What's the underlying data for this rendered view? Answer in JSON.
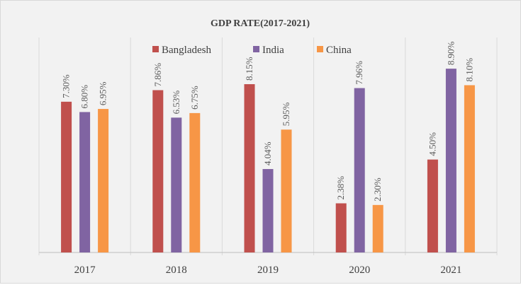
{
  "chart_data": {
    "type": "bar",
    "title": "GDP RATE(2017-2021)",
    "categories": [
      "2017",
      "2018",
      "2019",
      "2020",
      "2021"
    ],
    "series": [
      {
        "name": "Bangladesh",
        "color": "#c0504d",
        "values": [
          7.3,
          7.86,
          8.15,
          2.38,
          4.5
        ],
        "labels": [
          "7.30%",
          "7.86%",
          "8.15%",
          "2.38%",
          "4.50%"
        ]
      },
      {
        "name": "India",
        "color": "#8064a2",
        "values": [
          6.8,
          6.53,
          4.04,
          7.96,
          8.9
        ],
        "labels": [
          "6.80%",
          "6.53%",
          "4.04%",
          "7.96%",
          "8.90%"
        ]
      },
      {
        "name": "China",
        "color": "#f79646",
        "values": [
          6.95,
          6.75,
          5.95,
          2.3,
          8.1
        ],
        "labels": [
          "6.95%",
          "6.75%",
          "5.95%",
          "2.30%",
          "8.10%"
        ]
      }
    ],
    "ylim": [
      0,
      10
    ],
    "grid": false,
    "legend": "top-center",
    "xlabel": "",
    "ylabel": ""
  }
}
